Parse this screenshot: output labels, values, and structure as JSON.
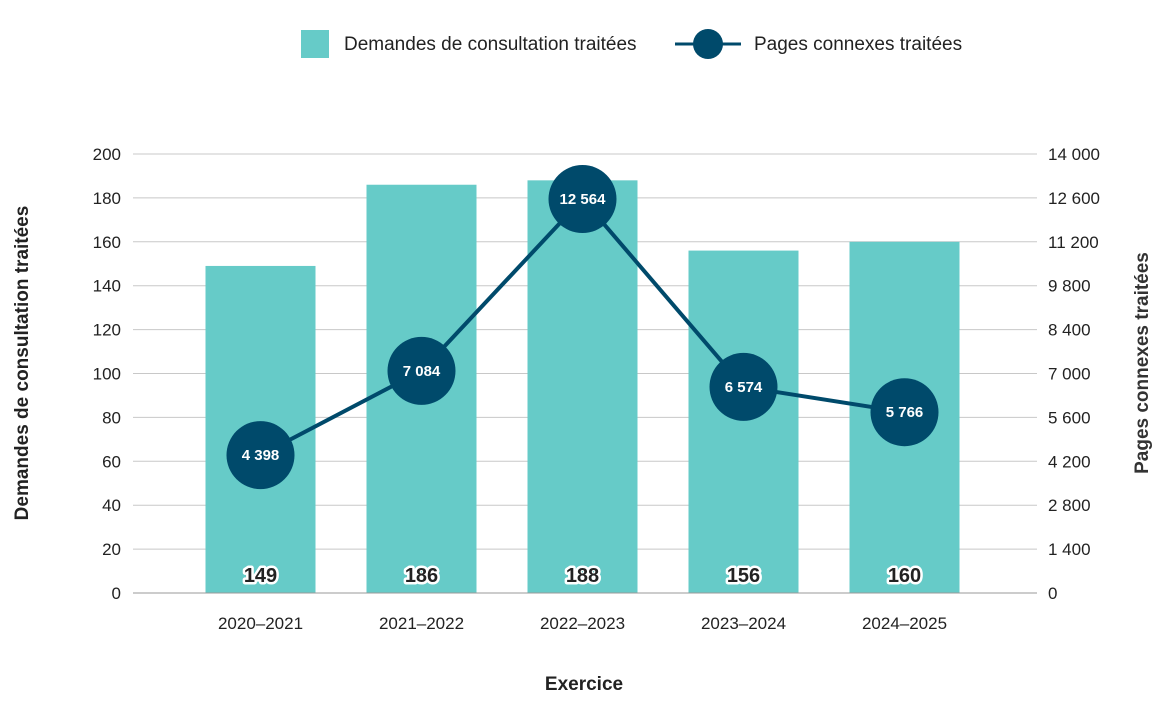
{
  "chart_data": {
    "type": "bar",
    "categories": [
      "2020–2021",
      "2021–2022",
      "2022–2023",
      "2023–2024",
      "2024–2025"
    ],
    "series": [
      {
        "name": "Demandes de consultation traitées",
        "type": "bar",
        "axis": "left",
        "color": "#66cbc8",
        "values": [
          149,
          186,
          188,
          156,
          160
        ],
        "value_labels": [
          "149",
          "186",
          "188",
          "156",
          "160"
        ]
      },
      {
        "name": "Pages connexes traitées",
        "type": "line",
        "axis": "right",
        "color": "#004a6b",
        "values": [
          4398,
          7084,
          12564,
          6574,
          5766
        ],
        "value_labels": [
          "4 398",
          "7 084",
          "12 564",
          "6 574",
          "5 766"
        ]
      }
    ],
    "xlabel": "Exercice",
    "ylabel": "Demandes de consultation traitées",
    "y2label": "Pages connexes traitées",
    "ylim": [
      0,
      200
    ],
    "y2lim": [
      0,
      14000
    ],
    "yticks": [
      "0",
      "20",
      "40",
      "60",
      "80",
      "100",
      "120",
      "140",
      "160",
      "180",
      "200"
    ],
    "y2ticks": [
      "0",
      "1 400",
      "2 800",
      "4 200",
      "5 600",
      "7 000",
      "8 400",
      "9 800",
      "11 200",
      "12 600",
      "14 000"
    ],
    "grid": true,
    "legend_position": "top"
  }
}
